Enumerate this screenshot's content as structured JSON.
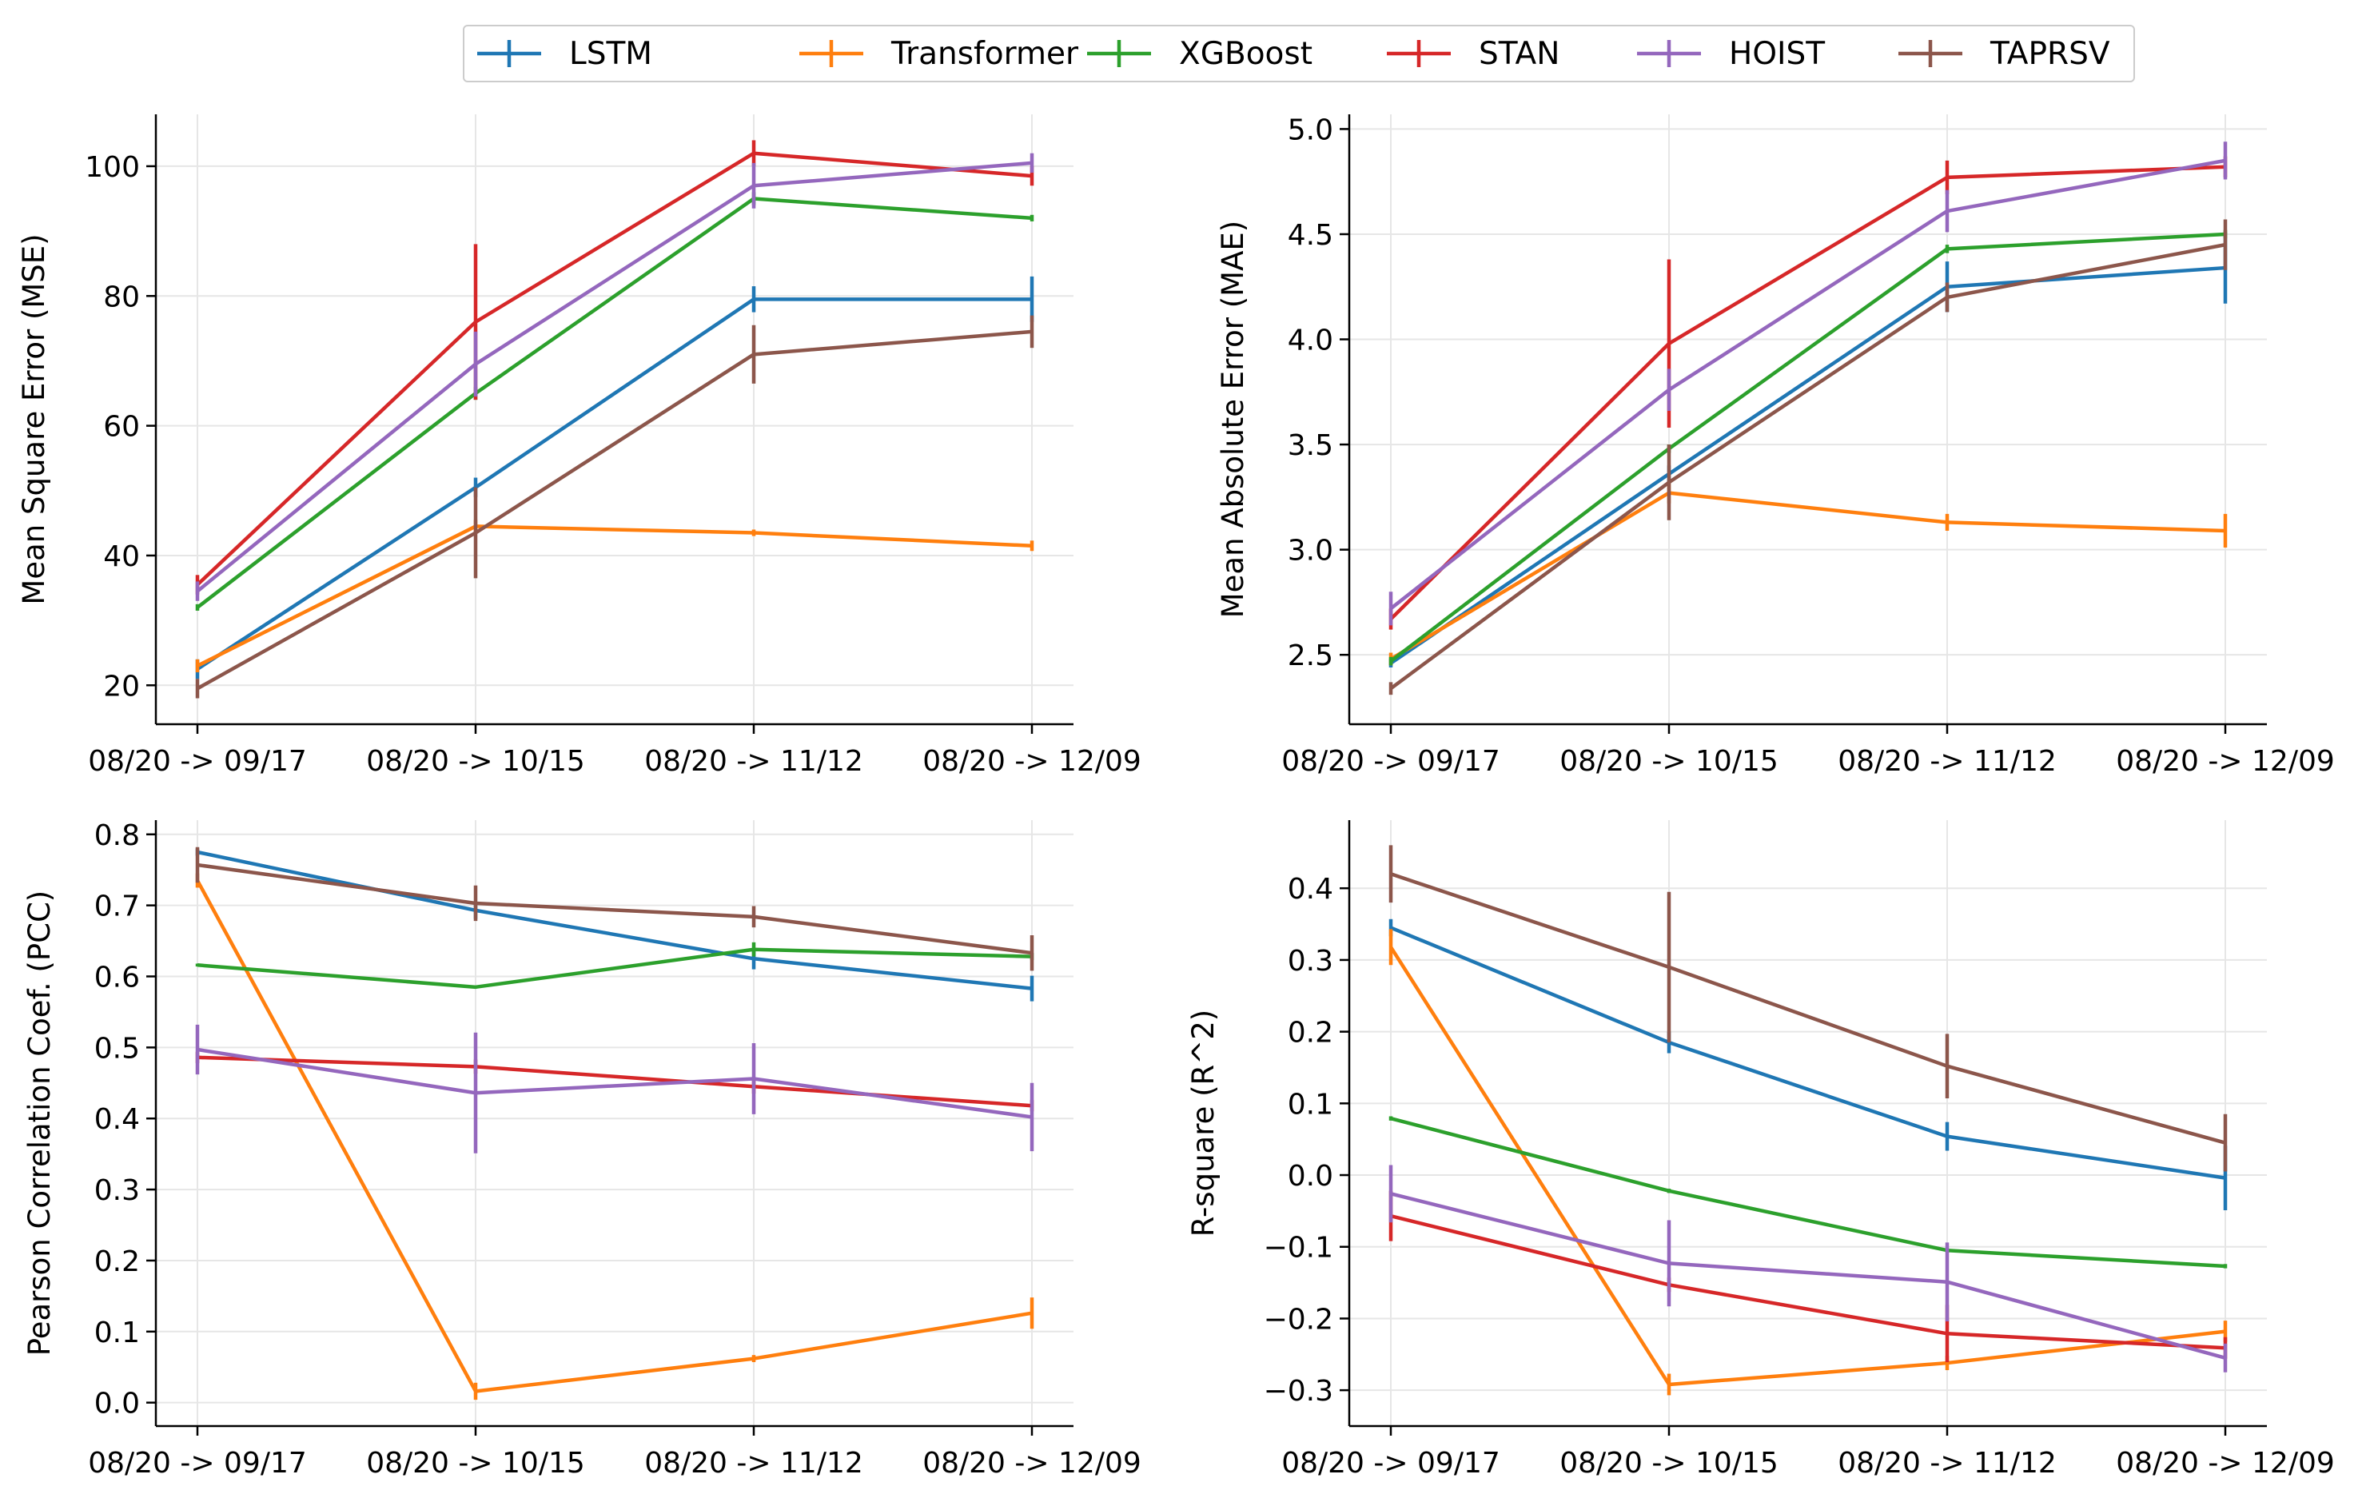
{
  "legend": {
    "entries": [
      {
        "name": "LSTM",
        "color": "#1f77b4"
      },
      {
        "name": "Transformer",
        "color": "#ff7f0e"
      },
      {
        "name": "XGBoost",
        "color": "#2ca02c"
      },
      {
        "name": "STAN",
        "color": "#d62728"
      },
      {
        "name": "HOIST",
        "color": "#9467bd"
      },
      {
        "name": "TAPRSV",
        "color": "#8c564b"
      }
    ],
    "placement": "top-center"
  },
  "chart_data": [
    {
      "type": "line",
      "ylabel": "Mean Square Error (MSE)",
      "xlabel": "",
      "categories": [
        "08/20 -> 09/17",
        "08/20 -> 10/15",
        "08/20 -> 11/12",
        "08/20 -> 12/09"
      ],
      "ylim": [
        14,
        108
      ],
      "yticks": [
        20,
        40,
        60,
        80,
        100
      ],
      "ytick_labels": [
        "20",
        "40",
        "60",
        "80",
        "100"
      ],
      "grid": true,
      "series": [
        {
          "name": "LSTM",
          "color": "#1f77b4",
          "values": [
            22.5,
            50.5,
            79.5,
            79.5
          ],
          "errors": [
            1.5,
            1.5,
            2.0,
            3.5
          ]
        },
        {
          "name": "Transformer",
          "color": "#ff7f0e",
          "values": [
            23.0,
            44.5,
            43.5,
            41.5
          ],
          "errors": [
            1.0,
            1.0,
            0.5,
            0.8
          ]
        },
        {
          "name": "XGBoost",
          "color": "#2ca02c",
          "values": [
            32.0,
            65.0,
            95.0,
            92.0
          ],
          "errors": [
            0.5,
            1.0,
            1.0,
            0.5
          ]
        },
        {
          "name": "STAN",
          "color": "#d62728",
          "values": [
            35.5,
            76.0,
            102.0,
            98.5
          ],
          "errors": [
            1.5,
            12.0,
            2.0,
            1.5
          ]
        },
        {
          "name": "HOIST",
          "color": "#9467bd",
          "values": [
            34.5,
            69.5,
            97.0,
            100.5
          ],
          "errors": [
            1.5,
            5.0,
            3.5,
            1.5
          ]
        },
        {
          "name": "TAPRSV",
          "color": "#8c564b",
          "values": [
            19.5,
            43.5,
            71.0,
            74.5
          ],
          "errors": [
            1.5,
            7.0,
            4.5,
            2.5
          ]
        }
      ]
    },
    {
      "type": "line",
      "ylabel": "Mean Absolute Error (MAE)",
      "xlabel": "",
      "categories": [
        "08/20 -> 09/17",
        "08/20 -> 10/15",
        "08/20 -> 11/12",
        "08/20 -> 12/09"
      ],
      "ylim": [
        2.17,
        5.07
      ],
      "yticks": [
        2.5,
        3.0,
        3.5,
        4.0,
        4.5,
        5.0
      ],
      "ytick_labels": [
        "2.5",
        "3.0",
        "3.5",
        "4.0",
        "4.5",
        "5.0"
      ],
      "grid": true,
      "series": [
        {
          "name": "LSTM",
          "color": "#1f77b4",
          "values": [
            2.46,
            3.36,
            4.25,
            4.34
          ],
          "errors": [
            0.02,
            0.04,
            0.12,
            0.17
          ]
        },
        {
          "name": "Transformer",
          "color": "#ff7f0e",
          "values": [
            2.48,
            3.27,
            3.13,
            3.09
          ],
          "errors": [
            0.03,
            0.05,
            0.04,
            0.08
          ]
        },
        {
          "name": "XGBoost",
          "color": "#2ca02c",
          "values": [
            2.47,
            3.48,
            4.43,
            4.5
          ],
          "errors": [
            0.02,
            0.02,
            0.02,
            0.02
          ]
        },
        {
          "name": "STAN",
          "color": "#d62728",
          "values": [
            2.67,
            3.98,
            4.77,
            4.82
          ],
          "errors": [
            0.05,
            0.4,
            0.08,
            0.05
          ]
        },
        {
          "name": "HOIST",
          "color": "#9467bd",
          "values": [
            2.72,
            3.76,
            4.61,
            4.85
          ],
          "errors": [
            0.08,
            0.1,
            0.1,
            0.09
          ]
        },
        {
          "name": "TAPRSV",
          "color": "#8c564b",
          "values": [
            2.34,
            3.32,
            4.2,
            4.45
          ],
          "errors": [
            0.03,
            0.18,
            0.07,
            0.12
          ]
        }
      ]
    },
    {
      "type": "line",
      "ylabel": "Pearson Correlation Coef. (PCC)",
      "xlabel": "",
      "categories": [
        "08/20 -> 09/17",
        "08/20 -> 10/15",
        "08/20 -> 11/12",
        "08/20 -> 12/09"
      ],
      "ylim": [
        -0.033,
        0.82
      ],
      "yticks": [
        0.0,
        0.1,
        0.2,
        0.3,
        0.4,
        0.5,
        0.6,
        0.7,
        0.8
      ],
      "ytick_labels": [
        "0.0",
        "0.1",
        "0.2",
        "0.3",
        "0.4",
        "0.5",
        "0.6",
        "0.7",
        "0.8"
      ],
      "grid": true,
      "series": [
        {
          "name": "LSTM",
          "color": "#1f77b4",
          "values": [
            0.775,
            0.693,
            0.625,
            0.583
          ],
          "errors": [
            0.005,
            0.012,
            0.015,
            0.018
          ]
        },
        {
          "name": "Transformer",
          "color": "#ff7f0e",
          "values": [
            0.735,
            0.016,
            0.062,
            0.126
          ],
          "errors": [
            0.01,
            0.012,
            0.005,
            0.022
          ]
        },
        {
          "name": "XGBoost",
          "color": "#2ca02c",
          "values": [
            0.616,
            0.585,
            0.638,
            0.628
          ],
          "errors": [
            0.002,
            0.002,
            0.01,
            0.005
          ]
        },
        {
          "name": "STAN",
          "color": "#d62728",
          "values": [
            0.486,
            0.473,
            0.445,
            0.418
          ],
          "errors": [
            0.008,
            0.01,
            0.01,
            0.008
          ]
        },
        {
          "name": "HOIST",
          "color": "#9467bd",
          "values": [
            0.497,
            0.436,
            0.456,
            0.402
          ],
          "errors": [
            0.035,
            0.085,
            0.05,
            0.048
          ]
        },
        {
          "name": "TAPRSV",
          "color": "#8c564b",
          "values": [
            0.757,
            0.703,
            0.684,
            0.633
          ],
          "errors": [
            0.025,
            0.025,
            0.015,
            0.025
          ]
        }
      ]
    },
    {
      "type": "line",
      "ylabel": "R-square (R^2)",
      "xlabel": "",
      "categories": [
        "08/20 -> 09/17",
        "08/20 -> 10/15",
        "08/20 -> 11/12",
        "08/20 -> 12/09"
      ],
      "ylim": [
        -0.35,
        0.495
      ],
      "yticks": [
        -0.3,
        -0.2,
        -0.1,
        0.0,
        0.1,
        0.2,
        0.3,
        0.4
      ],
      "ytick_labels": [
        "−0.3",
        "−0.2",
        "−0.1",
        "0.0",
        "0.1",
        "0.2",
        "0.3",
        "0.4"
      ],
      "grid": true,
      "series": [
        {
          "name": "LSTM",
          "color": "#1f77b4",
          "values": [
            0.345,
            0.185,
            0.054,
            -0.004
          ],
          "errors": [
            0.012,
            0.015,
            0.02,
            0.045
          ]
        },
        {
          "name": "Transformer",
          "color": "#ff7f0e",
          "values": [
            0.318,
            -0.292,
            -0.262,
            -0.218
          ],
          "errors": [
            0.025,
            0.015,
            0.01,
            0.015
          ]
        },
        {
          "name": "XGBoost",
          "color": "#2ca02c",
          "values": [
            0.079,
            -0.022,
            -0.105,
            -0.127
          ],
          "errors": [
            0.003,
            0.003,
            0.003,
            0.003
          ]
        },
        {
          "name": "STAN",
          "color": "#d62728",
          "values": [
            -0.057,
            -0.153,
            -0.221,
            -0.241
          ],
          "errors": [
            0.035,
            0.01,
            0.04,
            0.015
          ]
        },
        {
          "name": "HOIST",
          "color": "#9467bd",
          "values": [
            -0.026,
            -0.123,
            -0.149,
            -0.255
          ],
          "errors": [
            0.04,
            0.06,
            0.055,
            0.02
          ]
        },
        {
          "name": "TAPRSV",
          "color": "#8c564b",
          "values": [
            0.42,
            0.29,
            0.152,
            0.045
          ],
          "errors": [
            0.04,
            0.105,
            0.045,
            0.04
          ]
        }
      ]
    }
  ]
}
